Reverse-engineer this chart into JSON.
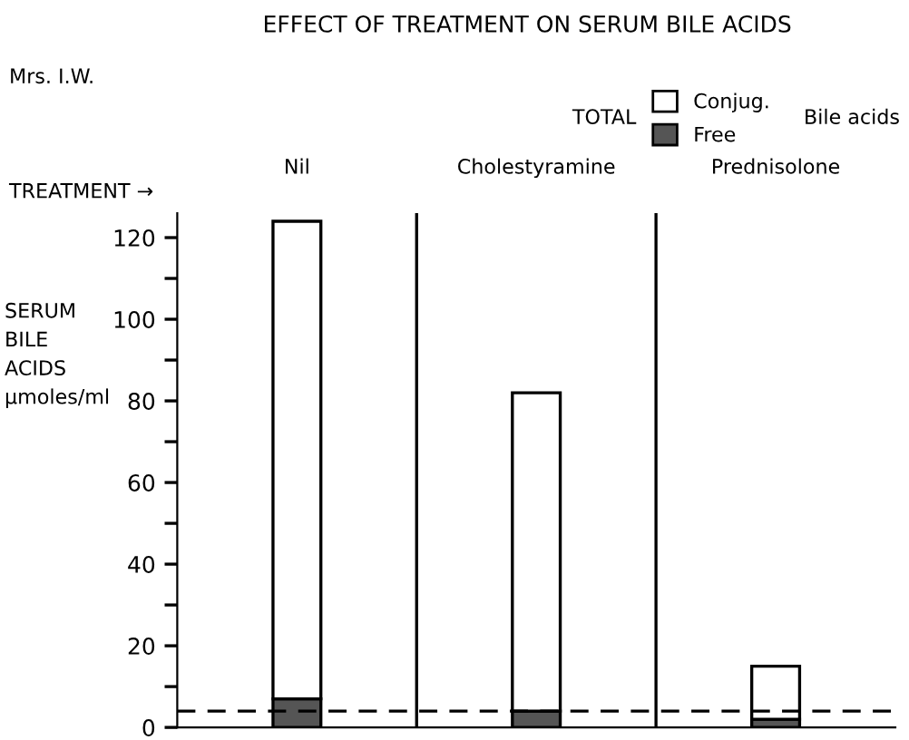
{
  "chart_data": {
    "type": "bar",
    "title": "EFFECT OF TREATMENT ON SERUM BILE ACIDS",
    "ylabel": "SERUM\nBILE\nACIDS\nμmoles/ml",
    "categories": [
      "Nil",
      "Cholestyramine",
      "Prednisolone"
    ],
    "stacked": true,
    "series": [
      {
        "name": "Free",
        "color": "#555555",
        "values": [
          7,
          4,
          2
        ]
      },
      {
        "name": "Conjug.",
        "color": "#ffffff",
        "values": [
          117,
          78,
          13
        ]
      }
    ],
    "ylim": [
      0,
      126
    ],
    "yticks": [
      0,
      {
        "value": 10,
        "label": null
      },
      20,
      {
        "value": 30,
        "label": null
      },
      40,
      {
        "value": 50,
        "label": null
      },
      60,
      {
        "value": 70,
        "label": null
      },
      80,
      {
        "value": 90,
        "label": null
      },
      100,
      {
        "value": 110,
        "label": null
      },
      120
    ],
    "ref_lines": [
      {
        "axis": "y",
        "value": 4,
        "color": "#000000",
        "line_style": "dashed"
      }
    ],
    "legend": "top right",
    "grid": false,
    "annotations": [
      "Mrs. I.W.",
      "TREATMENT →",
      "TOTAL",
      "Bile acids"
    ]
  }
}
